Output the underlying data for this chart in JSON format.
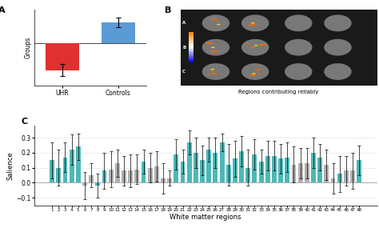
{
  "panel_A": {
    "bars": [
      {
        "label": "UHR",
        "value": -0.35,
        "color": "#e03030",
        "yerr": 0.08
      },
      {
        "label": "Controls",
        "value": 0.28,
        "color": "#5b9bd5",
        "yerr": 0.06
      }
    ],
    "ylabel": "Groups",
    "ylim": [
      -0.55,
      0.45
    ],
    "xlim": [
      -0.5,
      1.5
    ]
  },
  "panel_B": {
    "label": "B",
    "caption": "Regions contributing reliably",
    "bg_color": "#1a1a1a"
  },
  "panel_C": {
    "xlabel": "White matter regions",
    "ylabel": "Salience",
    "ylim": [
      -0.15,
      0.38
    ],
    "yticks": [
      -0.1,
      0.0,
      0.1,
      0.2,
      0.3
    ],
    "bar_color_teal": "#4db8b8",
    "bar_color_gray": "#b0b0b0",
    "regions": [
      1,
      2,
      3,
      4,
      5,
      6,
      7,
      8,
      9,
      10,
      11,
      12,
      13,
      14,
      15,
      16,
      17,
      18,
      19,
      20,
      21,
      22,
      23,
      24,
      25,
      26,
      27,
      28,
      29,
      30,
      31,
      32,
      33,
      34,
      35,
      36,
      37,
      38,
      39,
      40,
      41,
      42,
      43,
      44,
      45,
      46,
      47,
      48
    ],
    "values": [
      0.15,
      0.1,
      0.17,
      0.22,
      0.24,
      -0.02,
      0.05,
      -0.02,
      0.08,
      0.09,
      0.13,
      0.08,
      0.08,
      0.09,
      0.14,
      0.1,
      0.11,
      0.03,
      0.03,
      0.19,
      0.14,
      0.27,
      0.2,
      0.15,
      0.22,
      0.2,
      0.27,
      0.12,
      0.16,
      0.21,
      0.1,
      0.19,
      0.14,
      0.18,
      0.18,
      0.16,
      0.17,
      0.12,
      0.13,
      0.13,
      0.2,
      0.17,
      0.12,
      0.03,
      0.06,
      0.08,
      0.08,
      0.15
    ],
    "errors": [
      0.12,
      0.12,
      0.1,
      0.1,
      0.09,
      0.09,
      0.08,
      0.08,
      0.12,
      0.12,
      0.09,
      0.1,
      0.11,
      0.1,
      0.08,
      0.1,
      0.1,
      0.1,
      0.05,
      0.1,
      0.08,
      0.08,
      0.1,
      0.1,
      0.08,
      0.1,
      0.06,
      0.14,
      0.12,
      0.1,
      0.12,
      0.1,
      0.08,
      0.1,
      0.1,
      0.1,
      0.1,
      0.12,
      0.1,
      0.1,
      0.1,
      0.09,
      0.1,
      0.1,
      0.12,
      0.1,
      0.12,
      0.1
    ],
    "teal_indices": [
      0,
      1,
      2,
      3,
      4,
      7,
      8,
      14,
      19,
      20,
      21,
      22,
      23,
      24,
      25,
      26,
      27,
      28,
      29,
      30,
      31,
      32,
      33,
      34,
      35,
      36,
      40,
      41,
      44,
      47
    ],
    "gray_indices": [
      5,
      6,
      9,
      10,
      11,
      12,
      13,
      15,
      16,
      17,
      18,
      37,
      38,
      39,
      42,
      43,
      45,
      46
    ]
  }
}
